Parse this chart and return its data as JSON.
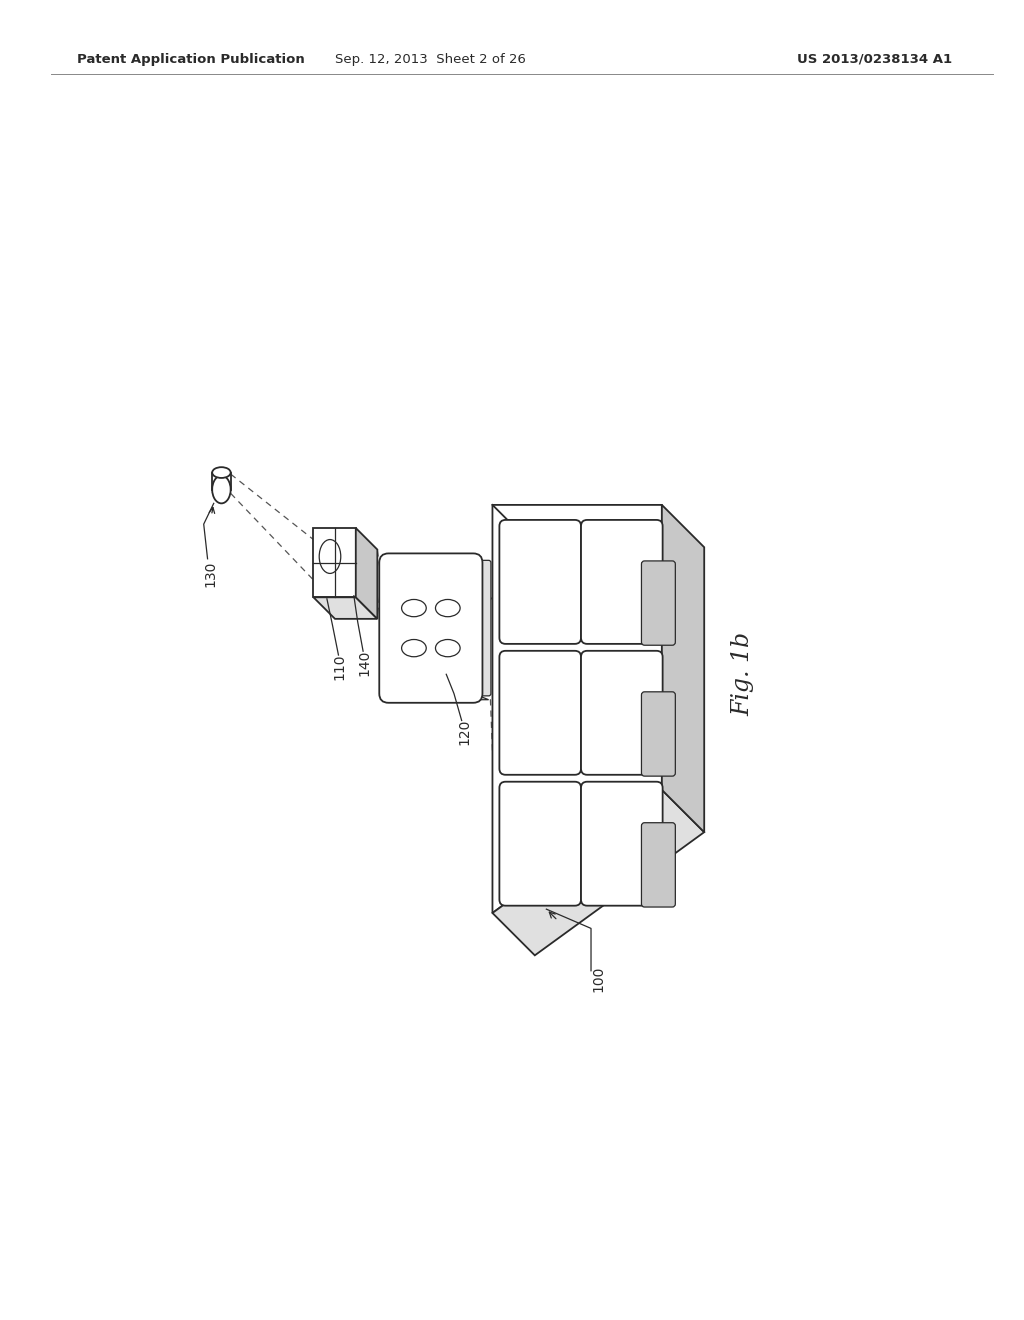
{
  "background_color": "#ffffff",
  "header_left": "Patent Application Publication",
  "header_center": "Sep. 12, 2013  Sheet 2 of 26",
  "header_right": "US 2013/0238134 A1",
  "fig_label": "Fig. 1b",
  "line_color": "#2a2a2a",
  "light_gray": "#e0e0e0",
  "mid_gray": "#c8c8c8"
}
